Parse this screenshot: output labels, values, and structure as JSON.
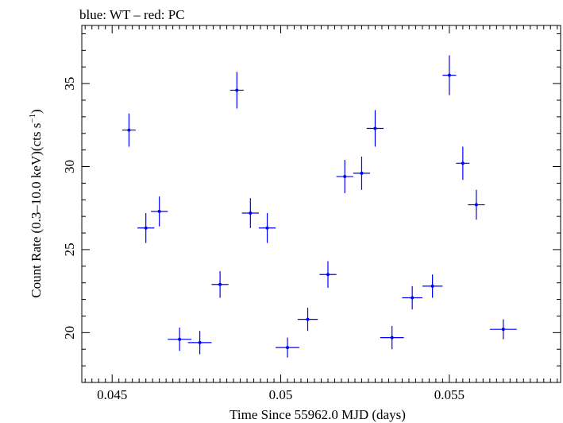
{
  "chart_data": {
    "type": "scatter",
    "title": "blue: WT – red: PC",
    "xlabel": "Time Since 55962.0 MJD (days)",
    "ylabel_main": "Count Rate (0.3–10.0 keV)(cts s",
    "ylabel_sup": "−1",
    "ylabel_end": ")",
    "xlim": [
      0.0441,
      0.0583
    ],
    "ylim": [
      17.0,
      38.5
    ],
    "xticks": [
      0.045,
      0.05,
      0.055
    ],
    "xtick_labels": [
      "0.045",
      "0.05",
      "0.055"
    ],
    "yticks": [
      20,
      25,
      30,
      35
    ],
    "ytick_labels": [
      "20",
      "25",
      "30",
      "35"
    ],
    "grid": false,
    "series": [
      {
        "color": "#0000ff",
        "points": [
          {
            "x": 0.0455,
            "y": 32.2,
            "xerr": 0.0002,
            "yerr": 1.0
          },
          {
            "x": 0.046,
            "y": 26.3,
            "xerr": 0.00025,
            "yerr": 0.9
          },
          {
            "x": 0.0464,
            "y": 27.3,
            "xerr": 0.00025,
            "yerr": 0.9
          },
          {
            "x": 0.047,
            "y": 19.6,
            "xerr": 0.00035,
            "yerr": 0.7
          },
          {
            "x": 0.0476,
            "y": 19.4,
            "xerr": 0.00035,
            "yerr": 0.7
          },
          {
            "x": 0.0482,
            "y": 22.9,
            "xerr": 0.00025,
            "yerr": 0.8
          },
          {
            "x": 0.0487,
            "y": 34.6,
            "xerr": 0.0002,
            "yerr": 1.1
          },
          {
            "x": 0.0491,
            "y": 27.2,
            "xerr": 0.00025,
            "yerr": 0.9
          },
          {
            "x": 0.0496,
            "y": 26.3,
            "xerr": 0.00025,
            "yerr": 0.9
          },
          {
            "x": 0.0502,
            "y": 19.1,
            "xerr": 0.00035,
            "yerr": 0.6
          },
          {
            "x": 0.0508,
            "y": 20.8,
            "xerr": 0.0003,
            "yerr": 0.7
          },
          {
            "x": 0.0514,
            "y": 23.5,
            "xerr": 0.00025,
            "yerr": 0.8
          },
          {
            "x": 0.0519,
            "y": 29.4,
            "xerr": 0.00025,
            "yerr": 1.0
          },
          {
            "x": 0.0524,
            "y": 29.6,
            "xerr": 0.00025,
            "yerr": 1.0
          },
          {
            "x": 0.0528,
            "y": 32.3,
            "xerr": 0.00025,
            "yerr": 1.1
          },
          {
            "x": 0.0533,
            "y": 19.7,
            "xerr": 0.00035,
            "yerr": 0.7
          },
          {
            "x": 0.0539,
            "y": 22.1,
            "xerr": 0.0003,
            "yerr": 0.7
          },
          {
            "x": 0.0545,
            "y": 22.8,
            "xerr": 0.0003,
            "yerr": 0.7
          },
          {
            "x": 0.055,
            "y": 35.5,
            "xerr": 0.0002,
            "yerr": 1.2
          },
          {
            "x": 0.0554,
            "y": 30.2,
            "xerr": 0.0002,
            "yerr": 1.0
          },
          {
            "x": 0.0558,
            "y": 27.7,
            "xerr": 0.00025,
            "yerr": 0.9
          },
          {
            "x": 0.0566,
            "y": 20.2,
            "xerr": 0.0004,
            "yerr": 0.6
          }
        ]
      }
    ]
  }
}
